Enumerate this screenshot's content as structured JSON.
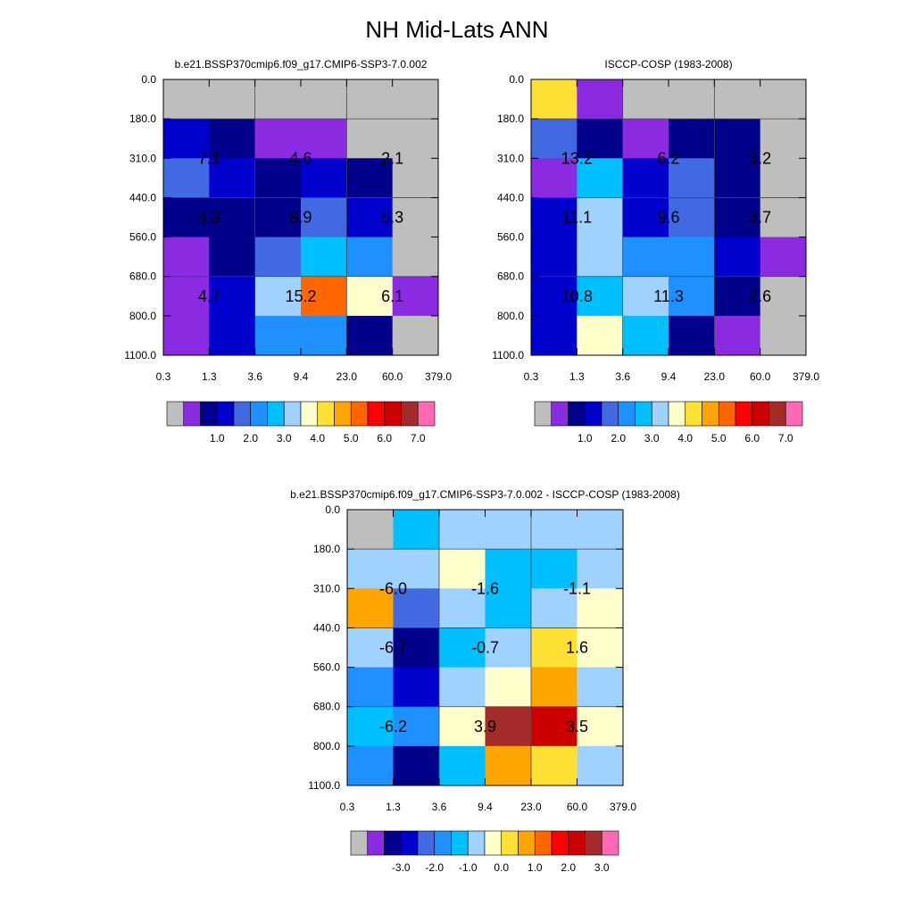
{
  "page_title": "NH Mid-Lats ANN",
  "colors": {
    "missing": "#bebebe",
    "outline": "#000000",
    "grid": "#444444",
    "palette_abs": [
      "#bebebe",
      "#8a2be2",
      "#00008b",
      "#0000cd",
      "#4169e1",
      "#1e90ff",
      "#00bfff",
      "#a0d2ff",
      "#ffffcc",
      "#ffe135",
      "#ffa500",
      "#ff6600",
      "#ff0000",
      "#cd0000",
      "#a52a2a",
      "#ff69b4"
    ],
    "palette_diff": [
      "#bebebe",
      "#8a2be2",
      "#00008b",
      "#0000cd",
      "#4169e1",
      "#1e90ff",
      "#00bfff",
      "#a0d2ff",
      "#ffffcc",
      "#ffe135",
      "#ffa500",
      "#ff6600",
      "#ff0000",
      "#cd0000",
      "#a52a2a",
      "#ff69b4"
    ]
  },
  "chart_data": [
    {
      "type": "heatmap",
      "title": "b.e21.BSSP370cmip6.f09_g17.CMIP6-SSP3-7.0.002",
      "xlabel": "",
      "ylabel": "",
      "x_ticks": [
        "0.3",
        "1.3",
        "3.6",
        "9.4",
        "23.0",
        "60.0",
        "379.0"
      ],
      "y_ticks": [
        "0.0",
        "180.0",
        "310.0",
        "440.0",
        "560.0",
        "680.0",
        "800.0",
        "1100.0"
      ],
      "cells": [
        [
          0,
          0,
          0,
          0,
          0,
          0
        ],
        [
          3,
          2,
          1,
          1,
          0,
          0
        ],
        [
          4,
          3,
          2,
          3,
          2,
          0
        ],
        [
          2,
          2,
          2,
          4,
          3,
          0
        ],
        [
          1,
          2,
          4,
          6,
          5,
          0
        ],
        [
          1,
          3,
          7,
          11,
          8,
          1
        ],
        [
          1,
          3,
          5,
          5,
          2,
          0
        ]
      ],
      "block_labels": [
        [
          "7.1",
          "4.6",
          "2.1"
        ],
        [
          "4.3",
          "8.9",
          "5.3"
        ],
        [
          "4.7",
          "15.2",
          "6.1"
        ]
      ],
      "colorbar": {
        "labels": [
          "1.0",
          "2.0",
          "3.0",
          "4.0",
          "5.0",
          "6.0",
          "7.0"
        ]
      }
    },
    {
      "type": "heatmap",
      "title": "ISCCP-COSP (1983-2008)",
      "xlabel": "",
      "ylabel": "",
      "x_ticks": [
        "0.3",
        "1.3",
        "3.6",
        "9.4",
        "23.0",
        "60.0",
        "379.0"
      ],
      "y_ticks": [
        "0.0",
        "180.0",
        "310.0",
        "440.0",
        "560.0",
        "680.0",
        "800.0",
        "1100.0"
      ],
      "cells": [
        [
          9,
          1,
          0,
          0,
          0,
          0
        ],
        [
          4,
          2,
          1,
          2,
          2,
          0
        ],
        [
          1,
          6,
          3,
          4,
          2,
          0
        ],
        [
          3,
          7,
          3,
          4,
          2,
          0
        ],
        [
          3,
          7,
          5,
          5,
          3,
          1
        ],
        [
          3,
          6,
          7,
          5,
          2,
          0
        ],
        [
          3,
          8,
          6,
          2,
          1,
          0
        ]
      ],
      "block_labels": [
        [
          "13.2",
          "6.2",
          "3.2"
        ],
        [
          "11.1",
          "9.6",
          "3.7"
        ],
        [
          "10.8",
          "11.3",
          "2.6"
        ]
      ],
      "colorbar": {
        "labels": [
          "1.0",
          "2.0",
          "3.0",
          "4.0",
          "5.0",
          "6.0",
          "7.0"
        ]
      }
    },
    {
      "type": "heatmap",
      "title": "b.e21.BSSP370cmip6.f09_g17.CMIP6-SSP3-7.0.002 - ISCCP-COSP (1983-2008)",
      "xlabel": "",
      "ylabel": "",
      "x_ticks": [
        "0.3",
        "1.3",
        "3.6",
        "9.4",
        "23.0",
        "60.0",
        "379.0"
      ],
      "y_ticks": [
        "0.0",
        "180.0",
        "310.0",
        "440.0",
        "560.0",
        "680.0",
        "800.0",
        "1100.0"
      ],
      "cells": [
        [
          0,
          6,
          7,
          7,
          7,
          7
        ],
        [
          7,
          7,
          8,
          6,
          6,
          7
        ],
        [
          10,
          4,
          7,
          6,
          7,
          8
        ],
        [
          7,
          2,
          6,
          7,
          9,
          8
        ],
        [
          5,
          3,
          7,
          8,
          10,
          7
        ],
        [
          6,
          5,
          8,
          14,
          13,
          8
        ],
        [
          5,
          2,
          6,
          10,
          9,
          7
        ]
      ],
      "block_labels": [
        [
          "-6.0",
          "-1.6",
          "-1.1"
        ],
        [
          "-6.7",
          "-0.7",
          "1.6"
        ],
        [
          "-6.2",
          "3.9",
          "3.5"
        ]
      ],
      "colorbar": {
        "labels": [
          "-3.0",
          "-2.0",
          "-1.0",
          "0.0",
          "1.0",
          "2.0",
          "3.0"
        ]
      }
    }
  ]
}
